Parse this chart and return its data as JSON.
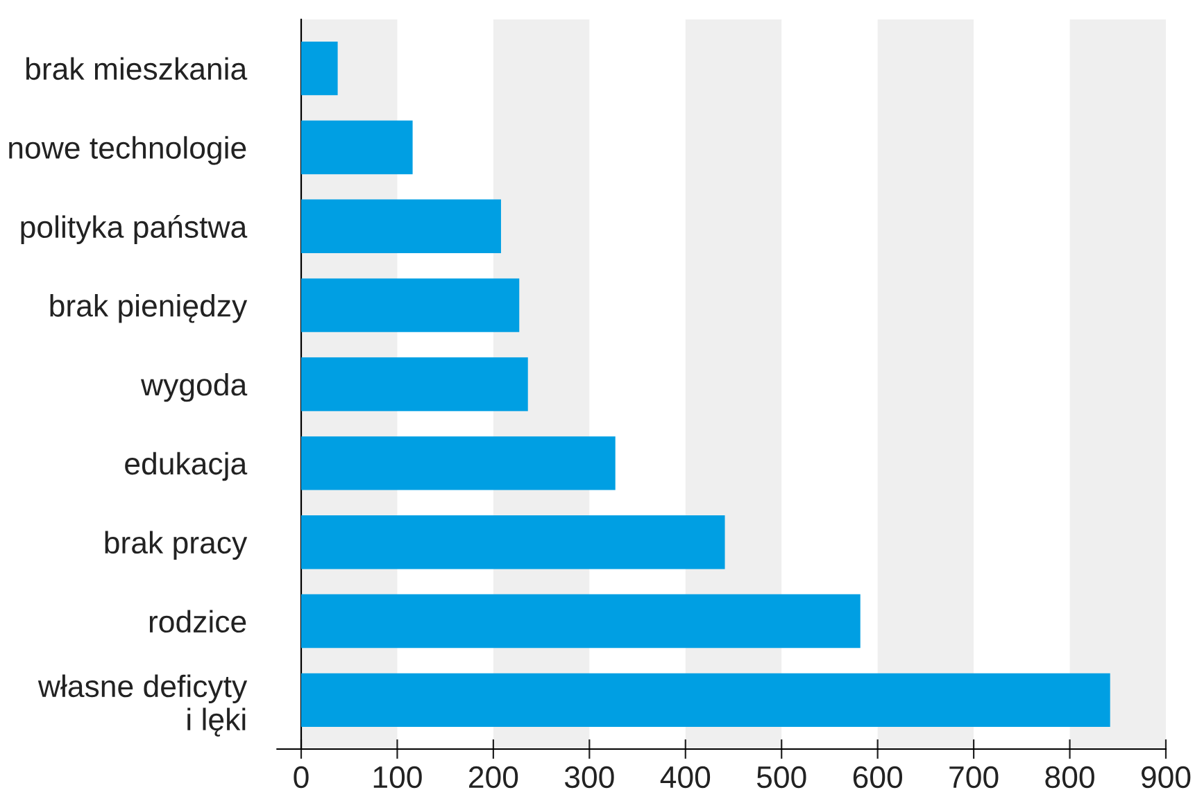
{
  "chart_data": {
    "type": "bar",
    "orientation": "horizontal",
    "categories": [
      "brak mieszkania",
      "nowe technologie",
      "polityka państwa",
      "brak pieniędzy",
      "wygoda",
      "edukacja",
      "brak pracy",
      "rodzice",
      "własne deficyty\ni lęki"
    ],
    "values": [
      38,
      116,
      208,
      227,
      236,
      327,
      441,
      582,
      842
    ],
    "color": "#009fe3",
    "xlim": [
      0,
      900
    ],
    "xticks": [
      0,
      100,
      200,
      300,
      400,
      500,
      600,
      700,
      800,
      900
    ],
    "grid": false,
    "bands": [
      {
        "axis": "x",
        "from": 0,
        "to": 100,
        "color": "#efefef"
      },
      {
        "axis": "x",
        "from": 200,
        "to": 300,
        "color": "#efefef"
      },
      {
        "axis": "x",
        "from": 400,
        "to": 500,
        "color": "#efefef"
      },
      {
        "axis": "x",
        "from": 600,
        "to": 700,
        "color": "#efefef"
      },
      {
        "axis": "x",
        "from": 800,
        "to": 900,
        "color": "#efefef"
      }
    ]
  }
}
